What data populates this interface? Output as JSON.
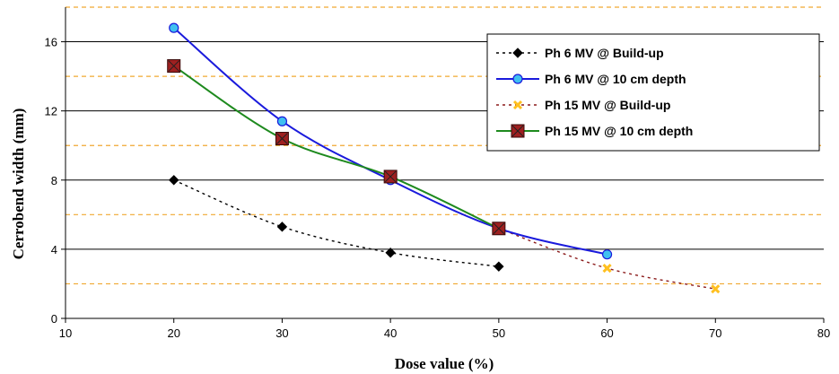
{
  "chart_data": {
    "type": "line",
    "xlabel": "Dose value (%)",
    "ylabel": "Cerrobend width (mm)",
    "xlim": [
      10,
      80
    ],
    "ylim": [
      0,
      18
    ],
    "xticks": [
      10,
      20,
      30,
      40,
      50,
      60,
      70,
      80
    ],
    "yticks": [
      0,
      4,
      8,
      12,
      16
    ],
    "grid": {
      "major_solid": [
        4,
        8,
        12,
        16
      ],
      "minor_dashed": [
        2,
        6,
        10,
        14,
        18
      ],
      "major_color": "#000000",
      "minor_color": "#f0a830"
    },
    "legend_position": "top-right",
    "series": [
      {
        "name": "Ph 6 MV @ Build-up",
        "color": "#000000",
        "line_style": "dotted",
        "marker": "diamond",
        "marker_fill": "#000000",
        "x": [
          20,
          30,
          40,
          50
        ],
        "y": [
          8.0,
          5.3,
          3.8,
          3.0
        ]
      },
      {
        "name": "Ph 6 MV @ 10 cm depth",
        "color": "#1a1adc",
        "line_style": "solid",
        "marker": "circle",
        "marker_fill": "#40c0f0",
        "x": [
          20,
          30,
          40,
          50,
          60
        ],
        "y": [
          16.8,
          11.4,
          8.0,
          5.2,
          3.7
        ]
      },
      {
        "name": "Ph 15 MV @ Build-up",
        "color": "#8b1a1a",
        "line_style": "dotted",
        "marker": "x",
        "marker_fill": "#ffc020",
        "x": [
          50,
          60,
          70
        ],
        "y": [
          5.2,
          2.9,
          1.7
        ]
      },
      {
        "name": "Ph 15 MV @ 10 cm depth",
        "color": "#1e8a1e",
        "line_style": "solid",
        "marker": "square-x",
        "marker_fill": "#9e2020",
        "x": [
          20,
          30,
          40,
          50
        ],
        "y": [
          14.6,
          10.4,
          8.2,
          5.2
        ]
      }
    ]
  }
}
